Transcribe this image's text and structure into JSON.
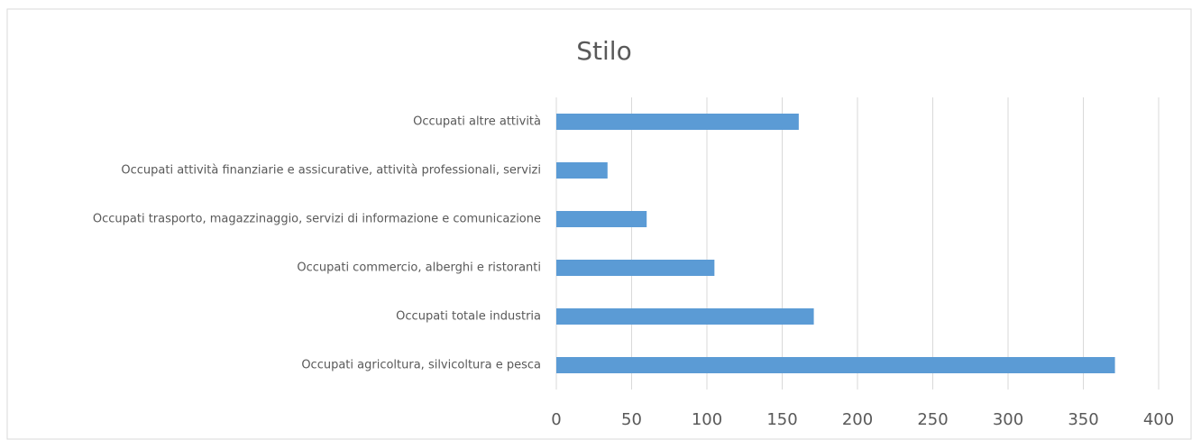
{
  "chart_data": {
    "type": "bar",
    "orientation": "horizontal",
    "title": "Stilo",
    "categories": [
      "Occupati altre attività",
      "Occupati attività finanziarie e assicurative, attività professionali, servizi",
      "Occupati trasporto, magazzinaggio, servizi di informazione e comunicazione",
      "Occupati commercio, alberghi e ristoranti",
      "Occupati totale industria",
      "Occupati agricoltura, silvicoltura e pesca"
    ],
    "values": [
      161,
      34,
      60,
      105,
      171,
      371
    ],
    "color": "#5b9bd5",
    "xlim": [
      0,
      400
    ],
    "xticks": [
      0,
      50,
      100,
      150,
      200,
      250,
      300,
      350,
      400
    ],
    "grid": true
  }
}
